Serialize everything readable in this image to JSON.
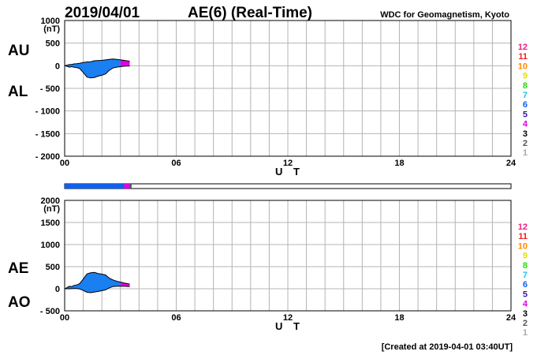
{
  "header": {
    "date": "2019/04/01",
    "title": "AE(6)  (Real-Time)",
    "source": "WDC for Geomagnetism, Kyoto"
  },
  "footer": {
    "created": "[Created at 2019-04-01 03:40UT]"
  },
  "colors": {
    "fill": "#1a7ff0",
    "outline": "#000000",
    "grid": "#b4b4b4",
    "legend": [
      "#aaaaaa",
      "#555555",
      "#000000",
      "#e000e0",
      "#3a1aa0",
      "#1060f0",
      "#20c0f0",
      "#20e000",
      "#e0e000",
      "#ff8c00",
      "#ee2020",
      "#ee2080"
    ]
  },
  "chart_data": [
    {
      "type": "area",
      "id": "au-al",
      "side_labels": [
        "AU",
        "AL"
      ],
      "unit": "(nT)",
      "xlabel": "U T",
      "xlim": [
        0,
        24
      ],
      "xticks": [
        "00",
        "06",
        "12",
        "18",
        "24"
      ],
      "ylim": [
        -2000,
        1000
      ],
      "yticks": [
        "1000",
        "500",
        "0",
        "- 500",
        "- 1000",
        "- 1500",
        "- 2000"
      ],
      "legend": [
        "1",
        "2",
        "3",
        "4",
        "5",
        "6",
        "7",
        "8",
        "9",
        "10",
        "11",
        "12"
      ],
      "series": [
        {
          "x": [
            0,
            0.1,
            0.25,
            0.4,
            0.5,
            0.65,
            0.8,
            1.0,
            1.2,
            1.4,
            1.6,
            1.8,
            2.0,
            2.2,
            2.4,
            2.6,
            2.8,
            3.0,
            3.2,
            3.5
          ],
          "values": [
            0,
            10,
            25,
            30,
            40,
            45,
            55,
            70,
            85,
            90,
            110,
            115,
            120,
            130,
            140,
            150,
            140,
            130,
            120,
            100
          ]
        },
        {
          "x": [
            0,
            0.1,
            0.25,
            0.4,
            0.5,
            0.65,
            0.8,
            1.0,
            1.2,
            1.4,
            1.6,
            1.8,
            2.0,
            2.2,
            2.4,
            2.6,
            2.8,
            3.0,
            3.2,
            3.5
          ],
          "values": [
            0,
            -10,
            -30,
            -20,
            -35,
            -40,
            -60,
            -150,
            -250,
            -270,
            -260,
            -230,
            -210,
            -180,
            -100,
            -50,
            -30,
            -20,
            -10,
            -5
          ]
        }
      ],
      "coverage_bar": [
        {
          "from": 0,
          "to": 3.2,
          "stations": 6
        },
        {
          "from": 3.2,
          "to": 3.5,
          "stations": 4
        },
        {
          "from": 3.5,
          "to": 3.6,
          "stations": 2
        }
      ]
    },
    {
      "type": "area",
      "id": "ae-ao",
      "side_labels": [
        "AE",
        "AO"
      ],
      "unit": "(nT)",
      "xlabel": "U T",
      "xlim": [
        0,
        24
      ],
      "xticks": [
        "00",
        "06",
        "12",
        "18",
        "24"
      ],
      "ylim": [
        -500,
        2000
      ],
      "yticks": [
        "2000",
        "1500",
        "1000",
        "500",
        "0",
        "- 500"
      ],
      "legend": [
        "1",
        "2",
        "3",
        "4",
        "5",
        "6",
        "7",
        "8",
        "9",
        "10",
        "11",
        "12"
      ],
      "series": [
        {
          "x": [
            0,
            0.1,
            0.25,
            0.4,
            0.5,
            0.65,
            0.8,
            1.0,
            1.2,
            1.4,
            1.6,
            1.8,
            2.0,
            2.2,
            2.4,
            2.6,
            2.8,
            3.0,
            3.2,
            3.5
          ],
          "values": [
            0,
            20,
            55,
            50,
            75,
            85,
            115,
            220,
            335,
            360,
            370,
            345,
            330,
            310,
            240,
            200,
            170,
            150,
            130,
            105
          ]
        },
        {
          "x": [
            0,
            0.1,
            0.25,
            0.4,
            0.5,
            0.65,
            0.8,
            1.0,
            1.2,
            1.4,
            1.6,
            1.8,
            2.0,
            2.2,
            2.4,
            2.6,
            2.8,
            3.0,
            3.2,
            3.5
          ],
          "values": [
            0,
            0,
            -2,
            5,
            3,
            3,
            -3,
            -40,
            -80,
            -90,
            -75,
            -60,
            -45,
            -25,
            20,
            50,
            55,
            55,
            55,
            48
          ]
        }
      ]
    }
  ]
}
